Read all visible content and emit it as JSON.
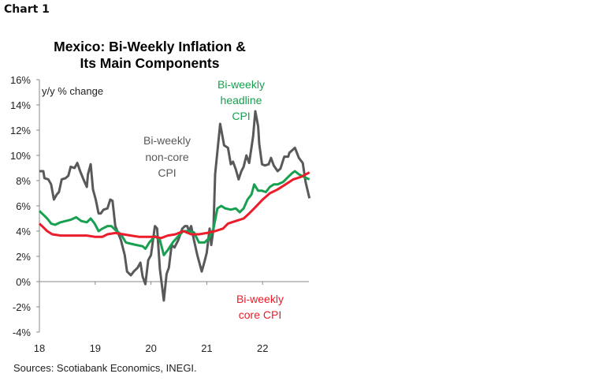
{
  "chart_label": "Chart 1",
  "chart_data": {
    "type": "line",
    "title": "Mexico: Bi-Weekly Inflation & Its Main Components",
    "title_lines": [
      "Mexico: Bi-Weekly Inflation &",
      "Its Main Components"
    ],
    "ylabel": "y/y % change",
    "xlabel": "",
    "ylim": [
      -4,
      16
    ],
    "xlim": [
      2018.0,
      2022.83
    ],
    "y_ticks": [
      "16%",
      "14%",
      "12%",
      "10%",
      "8%",
      "6%",
      "4%",
      "2%",
      "0%",
      "-2%",
      "-4%"
    ],
    "x_ticks": [
      "18",
      "19",
      "20",
      "21",
      "22"
    ],
    "grid": false,
    "source": "Sources: Scotiabank Economics, INEGI.",
    "series": [
      {
        "name": "Bi-weekly non-core CPI",
        "label_lines": [
          "Bi-weekly",
          "non-core",
          "CPI"
        ],
        "color": "#58595b",
        "points": [
          [
            2018.0,
            8.75
          ],
          [
            2018.07,
            8.75
          ],
          [
            2018.09,
            8.2
          ],
          [
            2018.16,
            8.1
          ],
          [
            2018.21,
            7.7
          ],
          [
            2018.26,
            6.5
          ],
          [
            2018.31,
            6.9
          ],
          [
            2018.35,
            7.1
          ],
          [
            2018.4,
            8.1
          ],
          [
            2018.47,
            8.2
          ],
          [
            2018.52,
            8.4
          ],
          [
            2018.56,
            9.1
          ],
          [
            2018.63,
            9.0
          ],
          [
            2018.68,
            9.4
          ],
          [
            2018.73,
            8.75
          ],
          [
            2018.8,
            8.0
          ],
          [
            2018.85,
            7.5
          ],
          [
            2018.87,
            8.5
          ],
          [
            2018.92,
            9.3
          ],
          [
            2018.96,
            7.3
          ],
          [
            2019.01,
            6.5
          ],
          [
            2019.06,
            5.4
          ],
          [
            2019.1,
            5.4
          ],
          [
            2019.15,
            5.7
          ],
          [
            2019.22,
            5.8
          ],
          [
            2019.27,
            6.5
          ],
          [
            2019.31,
            6.4
          ],
          [
            2019.36,
            4.4
          ],
          [
            2019.46,
            3.3
          ],
          [
            2019.53,
            2.1
          ],
          [
            2019.57,
            0.8
          ],
          [
            2019.64,
            0.5
          ],
          [
            2019.69,
            0.8
          ],
          [
            2019.76,
            1.1
          ],
          [
            2019.81,
            1.5
          ],
          [
            2019.85,
            0.4
          ],
          [
            2019.9,
            -0.2
          ],
          [
            2019.95,
            1.7
          ],
          [
            2020.0,
            2.1
          ],
          [
            2020.07,
            4.4
          ],
          [
            2020.11,
            4.2
          ],
          [
            2020.16,
            1.0
          ],
          [
            2020.23,
            -1.5
          ],
          [
            2020.28,
            0.6
          ],
          [
            2020.32,
            1.1
          ],
          [
            2020.37,
            2.9
          ],
          [
            2020.42,
            2.7
          ],
          [
            2020.49,
            3.3
          ],
          [
            2020.56,
            4.2
          ],
          [
            2020.61,
            4.4
          ],
          [
            2020.65,
            4.4
          ],
          [
            2020.68,
            4.0
          ],
          [
            2020.72,
            4.4
          ],
          [
            2020.77,
            3.3
          ],
          [
            2020.83,
            2.1
          ],
          [
            2020.91,
            0.8
          ],
          [
            2020.96,
            1.6
          ],
          [
            2021.0,
            2.3
          ],
          [
            2021.05,
            4.2
          ],
          [
            2021.08,
            2.9
          ],
          [
            2021.12,
            4.2
          ],
          [
            2021.15,
            8.5
          ],
          [
            2021.24,
            12.5
          ],
          [
            2021.31,
            10.8
          ],
          [
            2021.38,
            10.6
          ],
          [
            2021.43,
            9.3
          ],
          [
            2021.47,
            9.5
          ],
          [
            2021.52,
            8.9
          ],
          [
            2021.57,
            8.1
          ],
          [
            2021.62,
            8.75
          ],
          [
            2021.66,
            9.1
          ],
          [
            2021.71,
            10.0
          ],
          [
            2021.76,
            9.4
          ],
          [
            2021.83,
            11.5
          ],
          [
            2021.87,
            13.5
          ],
          [
            2021.92,
            12.3
          ],
          [
            2021.94,
            10.9
          ],
          [
            2021.99,
            9.3
          ],
          [
            2022.04,
            9.2
          ],
          [
            2022.11,
            9.3
          ],
          [
            2022.15,
            9.8
          ],
          [
            2022.2,
            9.2
          ],
          [
            2022.27,
            8.75
          ],
          [
            2022.32,
            8.95
          ],
          [
            2022.39,
            9.9
          ],
          [
            2022.46,
            9.9
          ],
          [
            2022.48,
            10.2
          ],
          [
            2022.58,
            10.6
          ],
          [
            2022.65,
            9.8
          ],
          [
            2022.72,
            9.4
          ],
          [
            2022.77,
            7.9
          ],
          [
            2022.84,
            6.6
          ]
        ]
      },
      {
        "name": "Bi-weekly headline CPI",
        "label_lines": [
          "Bi-weekly",
          "headline",
          "CPI"
        ],
        "color": "#17a050",
        "points": [
          [
            2018.0,
            5.6
          ],
          [
            2018.07,
            5.3
          ],
          [
            2018.14,
            5.0
          ],
          [
            2018.21,
            4.6
          ],
          [
            2018.28,
            4.5
          ],
          [
            2018.38,
            4.7
          ],
          [
            2018.47,
            4.8
          ],
          [
            2018.56,
            4.9
          ],
          [
            2018.66,
            5.1
          ],
          [
            2018.75,
            4.8
          ],
          [
            2018.85,
            4.7
          ],
          [
            2018.92,
            5.0
          ],
          [
            2018.99,
            4.6
          ],
          [
            2019.06,
            4.0
          ],
          [
            2019.13,
            4.2
          ],
          [
            2019.22,
            4.4
          ],
          [
            2019.29,
            4.4
          ],
          [
            2019.36,
            4.1
          ],
          [
            2019.46,
            3.75
          ],
          [
            2019.55,
            3.1
          ],
          [
            2019.64,
            3.0
          ],
          [
            2019.74,
            2.9
          ],
          [
            2019.85,
            2.8
          ],
          [
            2019.9,
            2.6
          ],
          [
            2019.97,
            3.1
          ],
          [
            2020.07,
            3.6
          ],
          [
            2020.16,
            3.3
          ],
          [
            2020.23,
            2.1
          ],
          [
            2020.3,
            2.5
          ],
          [
            2020.39,
            3.1
          ],
          [
            2020.49,
            3.6
          ],
          [
            2020.58,
            4.0
          ],
          [
            2020.68,
            4.0
          ],
          [
            2020.77,
            3.9
          ],
          [
            2020.86,
            3.1
          ],
          [
            2020.96,
            3.1
          ],
          [
            2021.05,
            3.5
          ],
          [
            2021.12,
            4.2
          ],
          [
            2021.19,
            5.8
          ],
          [
            2021.26,
            6.0
          ],
          [
            2021.33,
            5.8
          ],
          [
            2021.43,
            5.7
          ],
          [
            2021.52,
            5.8
          ],
          [
            2021.59,
            5.5
          ],
          [
            2021.66,
            5.8
          ],
          [
            2021.73,
            6.5
          ],
          [
            2021.8,
            6.9
          ],
          [
            2021.85,
            7.7
          ],
          [
            2021.92,
            7.2
          ],
          [
            2021.99,
            7.2
          ],
          [
            2022.06,
            7.1
          ],
          [
            2022.13,
            7.5
          ],
          [
            2022.2,
            7.7
          ],
          [
            2022.27,
            7.7
          ],
          [
            2022.37,
            7.9
          ],
          [
            2022.46,
            8.3
          ],
          [
            2022.53,
            8.6
          ],
          [
            2022.58,
            8.75
          ],
          [
            2022.65,
            8.5
          ],
          [
            2022.74,
            8.3
          ],
          [
            2022.84,
            8.1
          ]
        ]
      },
      {
        "name": "Bi-weekly core CPI",
        "label_lines": [
          "Bi-weekly",
          "core CPI"
        ],
        "color": "#ec1c2a",
        "points": [
          [
            2018.0,
            4.6
          ],
          [
            2018.07,
            4.3
          ],
          [
            2018.14,
            4.0
          ],
          [
            2018.23,
            3.75
          ],
          [
            2018.38,
            3.65
          ],
          [
            2018.56,
            3.65
          ],
          [
            2018.7,
            3.65
          ],
          [
            2018.85,
            3.65
          ],
          [
            2018.99,
            3.55
          ],
          [
            2019.13,
            3.55
          ],
          [
            2019.22,
            3.75
          ],
          [
            2019.36,
            3.85
          ],
          [
            2019.5,
            3.75
          ],
          [
            2019.64,
            3.65
          ],
          [
            2019.78,
            3.55
          ],
          [
            2019.92,
            3.55
          ],
          [
            2020.07,
            3.55
          ],
          [
            2020.18,
            3.45
          ],
          [
            2020.3,
            3.65
          ],
          [
            2020.44,
            3.75
          ],
          [
            2020.58,
            4.0
          ],
          [
            2020.72,
            3.75
          ],
          [
            2020.86,
            3.75
          ],
          [
            2021.0,
            3.85
          ],
          [
            2021.15,
            4.0
          ],
          [
            2021.29,
            4.2
          ],
          [
            2021.38,
            4.6
          ],
          [
            2021.52,
            4.8
          ],
          [
            2021.66,
            5.0
          ],
          [
            2021.76,
            5.4
          ],
          [
            2021.85,
            5.8
          ],
          [
            2021.99,
            6.45
          ],
          [
            2022.13,
            7.0
          ],
          [
            2022.27,
            7.3
          ],
          [
            2022.41,
            7.7
          ],
          [
            2022.55,
            8.1
          ],
          [
            2022.69,
            8.3
          ],
          [
            2022.84,
            8.65
          ]
        ]
      }
    ]
  }
}
